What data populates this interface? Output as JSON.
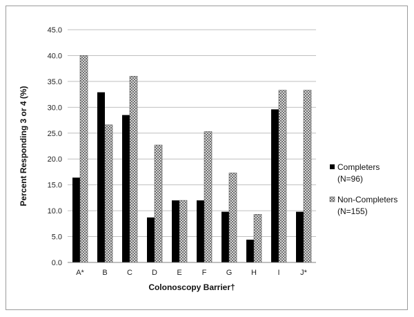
{
  "chart_data": {
    "type": "bar",
    "xlabel": "Colonoscopy Barrier†",
    "ylabel": "Percent Responding 3 or 4 (%)",
    "ylim": [
      0,
      45
    ],
    "ytick_step": 5,
    "ytick_labels": [
      "0.0",
      "5.0",
      "10.0",
      "15.0",
      "20.0",
      "25.0",
      "30.0",
      "35.0",
      "40.0",
      "45.0"
    ],
    "grid": true,
    "legend_position": "right",
    "categories": [
      "A*",
      "B",
      "C",
      "D",
      "E",
      "F",
      "G",
      "H",
      "I",
      "J*"
    ],
    "series": [
      {
        "name": "Completers",
        "name_line2": "(N=96)",
        "color": "#000000",
        "pattern": "solid",
        "values": [
          16.4,
          32.9,
          28.5,
          8.7,
          12.0,
          12.0,
          9.8,
          4.4,
          29.6,
          9.8
        ]
      },
      {
        "name": "Non-Completers",
        "name_line2": "(N=155)",
        "color": "#9a9a9a",
        "pattern": "checker",
        "values": [
          40.0,
          26.6,
          36.0,
          22.7,
          12.0,
          25.3,
          17.3,
          9.3,
          33.3,
          33.3
        ]
      }
    ]
  }
}
